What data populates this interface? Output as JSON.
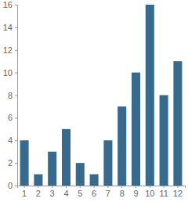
{
  "chart_data": {
    "type": "bar",
    "categories": [
      "1",
      "2",
      "3",
      "4",
      "5",
      "6",
      "7",
      "8",
      "9",
      "10",
      "11",
      "12"
    ],
    "values": [
      4,
      1,
      3,
      5,
      2,
      1,
      4,
      7,
      10,
      16,
      8,
      11
    ],
    "color": "#376a8d",
    "ylim": [
      0,
      16
    ],
    "yticks": [
      0,
      2,
      4,
      6,
      8,
      10,
      12,
      14,
      16
    ],
    "grid": false
  }
}
